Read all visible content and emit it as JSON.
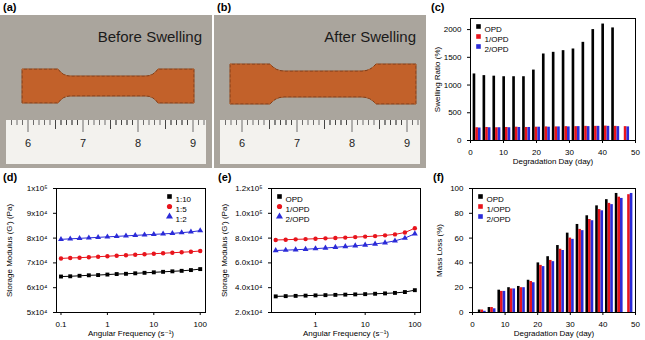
{
  "photos": [
    {
      "title": "(a)",
      "caption": "Before Swelling",
      "ruler_labels": [
        6,
        7,
        8,
        9
      ]
    },
    {
      "title": "(b)",
      "caption": "After Swelling",
      "ruler_labels": [
        6,
        7,
        8,
        9
      ]
    }
  ],
  "chart_data": [
    {
      "title": "(c)",
      "type": "bar",
      "x_label": "Degradation Day (day)",
      "y_label": "Swelling Ratio (%)",
      "x": [
        2,
        5,
        8,
        11,
        14,
        17,
        20,
        23,
        26,
        29,
        32,
        35,
        38,
        41,
        44,
        47
      ],
      "series": [
        {
          "name": "OPD",
          "color": "#000000",
          "values": [
            1200,
            1170,
            1160,
            1150,
            1150,
            1150,
            1270,
            1560,
            1590,
            1620,
            1650,
            1770,
            2000,
            2100,
            2030,
            null
          ]
        },
        {
          "name": "1/OPD",
          "color": "#e8141c",
          "values": [
            230,
            235,
            230,
            235,
            240,
            235,
            240,
            245,
            245,
            250,
            250,
            255,
            255,
            260,
            255,
            250
          ]
        },
        {
          "name": "2/OPD",
          "color": "#2b2bd8",
          "values": [
            225,
            230,
            230,
            230,
            235,
            235,
            240,
            240,
            245,
            245,
            250,
            250,
            255,
            255,
            250,
            245
          ]
        }
      ],
      "xlim": [
        0,
        50
      ],
      "xticks": [
        0,
        10,
        20,
        30,
        40,
        50
      ],
      "ylim": [
        0,
        2200
      ],
      "yticks": [
        0,
        500,
        1000,
        1500,
        2000
      ],
      "legend": "upper left"
    },
    {
      "title": "(d)",
      "type": "line",
      "x_label": "Angular Frequency (s⁻¹)",
      "y_label": "Storage Modulus (G') (Pa)",
      "log": "x",
      "x": [
        0.1,
        0.158,
        0.251,
        0.398,
        0.631,
        1,
        1.585,
        2.512,
        3.981,
        6.31,
        10,
        15.85,
        25.12,
        39.81,
        63.1,
        100
      ],
      "series": [
        {
          "name": "1:10",
          "color": "#000000",
          "marker": "square",
          "values": [
            64500,
            64600,
            64800,
            65000,
            65100,
            65300,
            65500,
            65600,
            65800,
            66000,
            66200,
            66400,
            66600,
            66800,
            67100,
            67500
          ]
        },
        {
          "name": "1:5",
          "color": "#e8141c",
          "marker": "circle",
          "values": [
            71800,
            72000,
            72100,
            72300,
            72500,
            72700,
            72900,
            73100,
            73300,
            73500,
            73700,
            73900,
            74100,
            74300,
            74500,
            74800
          ]
        },
        {
          "name": "1:2",
          "color": "#2b2bd8",
          "marker": "triangle",
          "values": [
            79500,
            79700,
            79900,
            80100,
            80300,
            80500,
            80700,
            80900,
            81100,
            81300,
            81500,
            81700,
            81900,
            82200,
            82500,
            83000
          ]
        }
      ],
      "xlim": [
        0.08,
        130
      ],
      "xticks": [
        0.1,
        1,
        10,
        100
      ],
      "ylim": [
        50000,
        100000
      ],
      "yticks": [
        {
          "value": 50000,
          "label": "5x10⁴"
        },
        {
          "value": 60000,
          "label": "6x10⁴"
        },
        {
          "value": 70000,
          "label": "7x10⁴"
        },
        {
          "value": 80000,
          "label": "8x10⁴"
        },
        {
          "value": 90000,
          "label": "9x10⁴"
        },
        {
          "value": 100000,
          "label": "1x10⁵"
        }
      ],
      "legend": "upper right"
    },
    {
      "title": "(e)",
      "type": "line",
      "x_label": "Angular Frequency (s⁻¹)",
      "y_label": "Storage Modulus (G') (Pa)",
      "log": "x",
      "x": [
        0.158,
        0.251,
        0.398,
        0.631,
        1,
        1.585,
        2.512,
        3.981,
        6.31,
        10,
        15.85,
        25.12,
        39.81,
        63.1,
        100
      ],
      "series": [
        {
          "name": "OPD",
          "color": "#000000",
          "marker": "square",
          "values": [
            33000,
            33200,
            33400,
            33600,
            33800,
            34000,
            34200,
            34400,
            34600,
            34800,
            35100,
            35400,
            35800,
            36500,
            38000
          ]
        },
        {
          "name": "1/OPD",
          "color": "#e8141c",
          "marker": "circle",
          "values": [
            78500,
            78700,
            79000,
            79200,
            79500,
            79800,
            80100,
            80400,
            80800,
            81200,
            81600,
            82200,
            83000,
            84500,
            88000
          ]
        },
        {
          "name": "2/OPD",
          "color": "#2b2bd8",
          "marker": "triangle",
          "values": [
            70000,
            70300,
            70600,
            71000,
            71500,
            72000,
            72600,
            73200,
            73800,
            74500,
            75300,
            76300,
            77800,
            80000,
            83500
          ]
        }
      ],
      "xlim": [
        0.13,
        130
      ],
      "xticks": [
        1,
        10,
        100
      ],
      "ylim": [
        20000,
        120000
      ],
      "yticks": [
        {
          "value": 20000,
          "label": "2.0x10⁴"
        },
        {
          "value": 40000,
          "label": "4.0x10⁴"
        },
        {
          "value": 60000,
          "label": "6.0x10⁴"
        },
        {
          "value": 80000,
          "label": "8.0x10⁴"
        },
        {
          "value": 100000,
          "label": "1.0x10⁵"
        },
        {
          "value": 120000,
          "label": "1.2x10⁵"
        }
      ],
      "legend": "upper left"
    },
    {
      "title": "(f)",
      "type": "bar",
      "x_label": "Degradation Day (day)",
      "y_label": "Mass Loss (%)",
      "x": [
        3,
        6,
        9,
        12,
        15,
        18,
        21,
        24,
        27,
        30,
        33,
        36,
        39,
        42,
        45,
        48
      ],
      "series": [
        {
          "name": "OPD",
          "color": "#000000",
          "values": [
            2,
            4,
            18,
            20,
            21,
            26,
            40,
            45,
            54,
            64,
            71,
            78,
            86,
            91,
            96,
            null
          ]
        },
        {
          "name": "1/OPD",
          "color": "#e8141c",
          "values": [
            2,
            4,
            17,
            19,
            20,
            25,
            38,
            42,
            51,
            60,
            67,
            75,
            83,
            88,
            93,
            95
          ]
        },
        {
          "name": "2/OPD",
          "color": "#2b2bd8",
          "values": [
            1,
            3,
            17,
            19,
            20,
            24,
            37,
            41,
            50,
            59,
            66,
            74,
            82,
            87,
            92,
            96
          ]
        }
      ],
      "xlim": [
        0,
        50
      ],
      "xticks": [
        0,
        10,
        20,
        30,
        40,
        50
      ],
      "ylim": [
        0,
        100
      ],
      "yticks": [
        0,
        20,
        40,
        60,
        80,
        100
      ],
      "legend": "upper left"
    }
  ]
}
